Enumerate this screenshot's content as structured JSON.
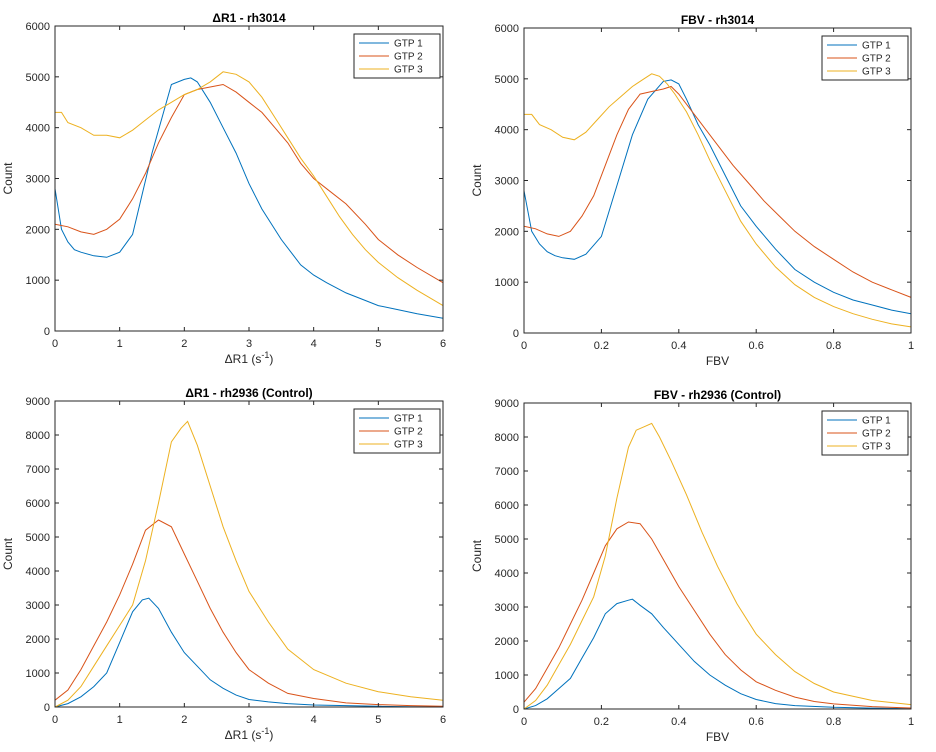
{
  "chart_data": [
    {
      "type": "line",
      "title": "ΔR1 - rh3014",
      "xlabel_main": "ΔR1 (s",
      "xlabel_sup": "-1",
      "xlabel_tail": ")",
      "ylabel": "Count",
      "xlim": [
        0,
        6
      ],
      "ylim": [
        0,
        6000
      ],
      "xticks": [
        0,
        1,
        2,
        3,
        4,
        5,
        6
      ],
      "xtick_labels": [
        "0",
        "1",
        "2",
        "3",
        "4",
        "5",
        "6"
      ],
      "yticks": [
        0,
        1000,
        2000,
        3000,
        4000,
        5000,
        6000
      ],
      "ytick_labels": [
        "0",
        "1000",
        "2000",
        "3000",
        "4000",
        "5000",
        "6000"
      ],
      "legend_position": "top-right",
      "series": [
        {
          "name": "GTP 1",
          "color": "#0072bd",
          "x": [
            0,
            0.1,
            0.2,
            0.3,
            0.4,
            0.6,
            0.8,
            1.0,
            1.2,
            1.5,
            1.8,
            2.0,
            2.1,
            2.2,
            2.4,
            2.6,
            2.8,
            3.0,
            3.2,
            3.5,
            3.8,
            4.0,
            4.2,
            4.5,
            4.8,
            5.0,
            5.3,
            5.6,
            6.0
          ],
          "y": [
            2800,
            2000,
            1750,
            1600,
            1550,
            1480,
            1450,
            1550,
            1900,
            3500,
            4850,
            4950,
            4980,
            4900,
            4500,
            4000,
            3500,
            2900,
            2400,
            1800,
            1300,
            1100,
            950,
            750,
            600,
            500,
            420,
            340,
            250
          ]
        },
        {
          "name": "GTP 2",
          "color": "#d95319",
          "x": [
            0,
            0.2,
            0.4,
            0.6,
            0.8,
            1.0,
            1.2,
            1.4,
            1.6,
            1.8,
            2.0,
            2.2,
            2.4,
            2.6,
            2.8,
            3.0,
            3.2,
            3.4,
            3.6,
            3.8,
            4.0,
            4.2,
            4.5,
            4.8,
            5.0,
            5.3,
            5.6,
            6.0
          ],
          "y": [
            2100,
            2050,
            1950,
            1900,
            2000,
            2200,
            2600,
            3100,
            3700,
            4200,
            4650,
            4750,
            4800,
            4850,
            4700,
            4500,
            4300,
            4000,
            3700,
            3300,
            3000,
            2800,
            2500,
            2100,
            1800,
            1500,
            1250,
            950
          ]
        },
        {
          "name": "GTP 3",
          "color": "#edb120",
          "x": [
            0,
            0.1,
            0.2,
            0.4,
            0.6,
            0.8,
            1.0,
            1.2,
            1.4,
            1.6,
            1.8,
            2.0,
            2.2,
            2.4,
            2.6,
            2.8,
            3.0,
            3.2,
            3.4,
            3.6,
            3.8,
            4.0,
            4.2,
            4.4,
            4.6,
            4.8,
            5.0,
            5.3,
            5.6,
            6.0
          ],
          "y": [
            4300,
            4300,
            4100,
            4000,
            3850,
            3850,
            3800,
            3950,
            4150,
            4350,
            4500,
            4650,
            4750,
            4900,
            5100,
            5050,
            4900,
            4600,
            4200,
            3800,
            3400,
            3050,
            2650,
            2250,
            1900,
            1600,
            1350,
            1050,
            800,
            500
          ]
        }
      ]
    },
    {
      "type": "line",
      "title": "FBV - rh3014",
      "xlabel_main": "FBV",
      "xlabel_sup": "",
      "xlabel_tail": "",
      "ylabel": "Count",
      "xlim": [
        0,
        1
      ],
      "ylim": [
        0,
        6000
      ],
      "xticks": [
        0,
        0.2,
        0.4,
        0.6,
        0.8,
        1
      ],
      "xtick_labels": [
        "0",
        "0.2",
        "0.4",
        "0.6",
        "0.8",
        "1"
      ],
      "yticks": [
        0,
        1000,
        2000,
        3000,
        4000,
        5000,
        6000
      ],
      "ytick_labels": [
        "0",
        "1000",
        "2000",
        "3000",
        "4000",
        "5000",
        "6000"
      ],
      "legend_position": "top-right",
      "series": [
        {
          "name": "GTP 1",
          "color": "#0072bd",
          "x": [
            0,
            0.02,
            0.04,
            0.06,
            0.08,
            0.1,
            0.13,
            0.16,
            0.2,
            0.24,
            0.28,
            0.32,
            0.36,
            0.38,
            0.4,
            0.42,
            0.45,
            0.48,
            0.52,
            0.56,
            0.6,
            0.65,
            0.7,
            0.75,
            0.8,
            0.85,
            0.9,
            0.95,
            1.0
          ],
          "y": [
            2800,
            2000,
            1750,
            1600,
            1520,
            1480,
            1450,
            1550,
            1900,
            2900,
            3900,
            4600,
            4950,
            4980,
            4900,
            4600,
            4100,
            3700,
            3100,
            2500,
            2100,
            1650,
            1250,
            1000,
            800,
            650,
            550,
            450,
            380
          ]
        },
        {
          "name": "GTP 2",
          "color": "#d95319",
          "x": [
            0,
            0.03,
            0.06,
            0.09,
            0.12,
            0.15,
            0.18,
            0.21,
            0.24,
            0.27,
            0.3,
            0.33,
            0.36,
            0.38,
            0.4,
            0.43,
            0.46,
            0.5,
            0.54,
            0.58,
            0.62,
            0.66,
            0.7,
            0.75,
            0.8,
            0.85,
            0.9,
            0.95,
            1.0
          ],
          "y": [
            2100,
            2050,
            1950,
            1900,
            2000,
            2300,
            2700,
            3300,
            3900,
            4400,
            4700,
            4750,
            4800,
            4850,
            4700,
            4400,
            4100,
            3700,
            3300,
            2950,
            2600,
            2300,
            2000,
            1700,
            1450,
            1200,
            1000,
            850,
            700
          ]
        },
        {
          "name": "GTP 3",
          "color": "#edb120",
          "x": [
            0,
            0.02,
            0.04,
            0.07,
            0.1,
            0.13,
            0.16,
            0.19,
            0.22,
            0.25,
            0.28,
            0.31,
            0.33,
            0.35,
            0.37,
            0.39,
            0.42,
            0.45,
            0.48,
            0.52,
            0.56,
            0.6,
            0.65,
            0.7,
            0.75,
            0.8,
            0.85,
            0.9,
            0.95,
            1.0
          ],
          "y": [
            4300,
            4300,
            4100,
            4000,
            3850,
            3800,
            3950,
            4200,
            4450,
            4650,
            4850,
            5000,
            5100,
            5050,
            4900,
            4700,
            4350,
            3900,
            3400,
            2800,
            2200,
            1750,
            1300,
            950,
            700,
            520,
            380,
            270,
            180,
            120
          ]
        }
      ]
    },
    {
      "type": "line",
      "title": "ΔR1 - rh2936 (Control)",
      "xlabel_main": "ΔR1 (s",
      "xlabel_sup": "-1",
      "xlabel_tail": ")",
      "ylabel": "Count",
      "xlim": [
        0,
        6
      ],
      "ylim": [
        0,
        9000
      ],
      "xticks": [
        0,
        1,
        2,
        3,
        4,
        5,
        6
      ],
      "xtick_labels": [
        "0",
        "1",
        "2",
        "3",
        "4",
        "5",
        "6"
      ],
      "yticks": [
        0,
        1000,
        2000,
        3000,
        4000,
        5000,
        6000,
        7000,
        8000,
        9000
      ],
      "ytick_labels": [
        "0",
        "1000",
        "2000",
        "3000",
        "4000",
        "5000",
        "6000",
        "7000",
        "8000",
        "9000"
      ],
      "legend_position": "top-right",
      "series": [
        {
          "name": "GTP 1",
          "color": "#0072bd",
          "x": [
            0,
            0.2,
            0.4,
            0.6,
            0.8,
            1.0,
            1.2,
            1.35,
            1.45,
            1.6,
            1.8,
            2.0,
            2.2,
            2.4,
            2.6,
            2.8,
            3.0,
            3.3,
            3.6,
            4.0,
            4.5,
            5.0,
            5.5,
            6.0
          ],
          "y": [
            0,
            100,
            300,
            600,
            1000,
            1900,
            2800,
            3150,
            3200,
            2900,
            2200,
            1600,
            1200,
            800,
            550,
            350,
            220,
            150,
            100,
            60,
            40,
            20,
            10,
            5
          ]
        },
        {
          "name": "GTP 2",
          "color": "#d95319",
          "x": [
            0,
            0.2,
            0.4,
            0.6,
            0.8,
            1.0,
            1.2,
            1.4,
            1.6,
            1.8,
            2.0,
            2.2,
            2.4,
            2.6,
            2.8,
            3.0,
            3.3,
            3.6,
            4.0,
            4.5,
            5.0,
            5.5,
            6.0
          ],
          "y": [
            200,
            500,
            1100,
            1800,
            2500,
            3300,
            4200,
            5200,
            5500,
            5300,
            4500,
            3700,
            2900,
            2200,
            1600,
            1100,
            700,
            400,
            250,
            120,
            70,
            40,
            20
          ]
        },
        {
          "name": "GTP 3",
          "color": "#edb120",
          "x": [
            0,
            0.2,
            0.4,
            0.6,
            0.8,
            1.0,
            1.2,
            1.4,
            1.6,
            1.8,
            1.95,
            2.05,
            2.2,
            2.4,
            2.6,
            2.8,
            3.0,
            3.3,
            3.6,
            4.0,
            4.5,
            5.0,
            5.5,
            6.0
          ],
          "y": [
            0,
            200,
            600,
            1200,
            1800,
            2400,
            3000,
            4300,
            6000,
            7800,
            8200,
            8400,
            7700,
            6500,
            5300,
            4300,
            3400,
            2500,
            1700,
            1100,
            700,
            450,
            300,
            200
          ]
        }
      ]
    },
    {
      "type": "line",
      "title": "FBV - rh2936 (Control)",
      "xlabel_main": "FBV",
      "xlabel_sup": "",
      "xlabel_tail": "",
      "ylabel": "Count",
      "xlim": [
        0,
        1
      ],
      "ylim": [
        0,
        9000
      ],
      "xticks": [
        0,
        0.2,
        0.4,
        0.6,
        0.8,
        1
      ],
      "xtick_labels": [
        "0",
        "0.2",
        "0.4",
        "0.6",
        "0.8",
        "1"
      ],
      "yticks": [
        0,
        1000,
        2000,
        3000,
        4000,
        5000,
        6000,
        7000,
        8000,
        9000
      ],
      "ytick_labels": [
        "0",
        "1000",
        "2000",
        "3000",
        "4000",
        "5000",
        "6000",
        "7000",
        "8000",
        "9000"
      ],
      "legend_position": "top-right",
      "series": [
        {
          "name": "GTP 1",
          "color": "#0072bd",
          "x": [
            0,
            0.03,
            0.06,
            0.09,
            0.12,
            0.15,
            0.18,
            0.21,
            0.24,
            0.27,
            0.28,
            0.3,
            0.33,
            0.36,
            0.4,
            0.44,
            0.48,
            0.52,
            0.56,
            0.6,
            0.65,
            0.7,
            0.8,
            0.9,
            1.0
          ],
          "y": [
            0,
            100,
            300,
            600,
            900,
            1500,
            2100,
            2800,
            3100,
            3200,
            3230,
            3050,
            2800,
            2400,
            1900,
            1400,
            1000,
            700,
            450,
            280,
            160,
            100,
            50,
            25,
            10
          ]
        },
        {
          "name": "GTP 2",
          "color": "#d95319",
          "x": [
            0,
            0.03,
            0.06,
            0.09,
            0.12,
            0.15,
            0.18,
            0.21,
            0.24,
            0.27,
            0.3,
            0.33,
            0.36,
            0.4,
            0.44,
            0.48,
            0.52,
            0.56,
            0.6,
            0.65,
            0.7,
            0.75,
            0.8,
            0.9,
            1.0
          ],
          "y": [
            200,
            600,
            1200,
            1800,
            2500,
            3200,
            4000,
            4800,
            5300,
            5500,
            5450,
            5000,
            4400,
            3600,
            2900,
            2200,
            1600,
            1150,
            800,
            550,
            350,
            220,
            150,
            70,
            30
          ]
        },
        {
          "name": "GTP 3",
          "color": "#edb120",
          "x": [
            0,
            0.03,
            0.06,
            0.09,
            0.12,
            0.15,
            0.18,
            0.21,
            0.24,
            0.27,
            0.29,
            0.31,
            0.33,
            0.35,
            0.38,
            0.42,
            0.46,
            0.5,
            0.55,
            0.6,
            0.65,
            0.7,
            0.75,
            0.8,
            0.9,
            1.0
          ],
          "y": [
            0,
            250,
            700,
            1300,
            1900,
            2600,
            3300,
            4500,
            6200,
            7700,
            8200,
            8300,
            8400,
            8000,
            7300,
            6300,
            5200,
            4200,
            3100,
            2200,
            1600,
            1100,
            750,
            500,
            250,
            130
          ]
        }
      ]
    }
  ]
}
